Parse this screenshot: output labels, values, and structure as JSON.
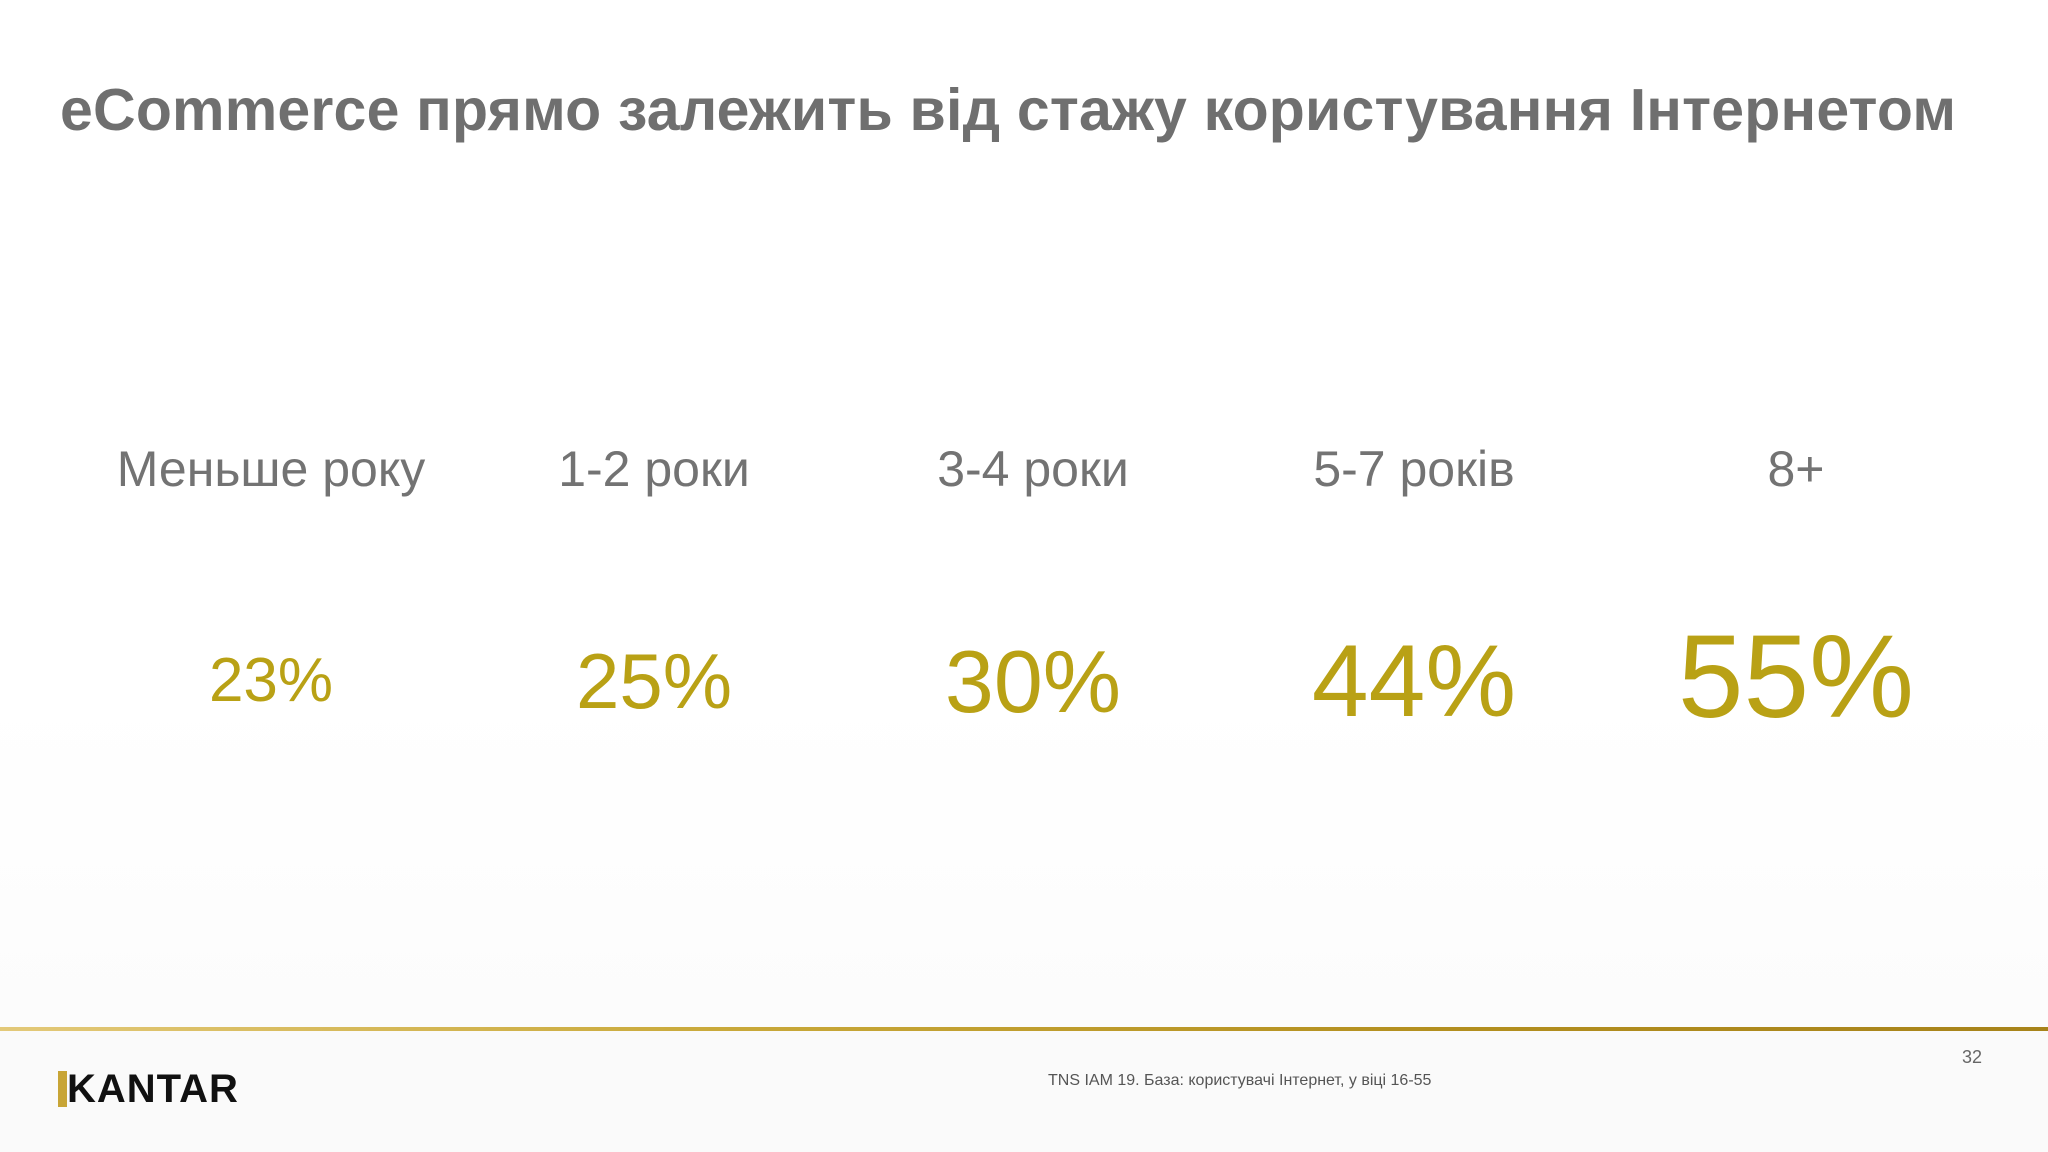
{
  "title": "eCommerce прямо залежить від стажу користування Інтернетом",
  "chart_data": {
    "type": "table",
    "categories": [
      "Меньше року",
      "1-2 роки",
      "3-4 роки",
      "5-7 років",
      "8+"
    ],
    "values": [
      "23%",
      "25%",
      "30%",
      "44%",
      "55%"
    ],
    "numeric_values": [
      23,
      25,
      30,
      44,
      55
    ],
    "value_color": "#b9a115",
    "label_color": "#737373"
  },
  "footer": {
    "logo_text": "KANTAR",
    "source": "TNS IAM 19. База: користувачі Інтернет, у віці 16-55",
    "page_number": "32"
  },
  "colors": {
    "title": "#6f6f6f",
    "accent_gold": "#c8a536"
  }
}
